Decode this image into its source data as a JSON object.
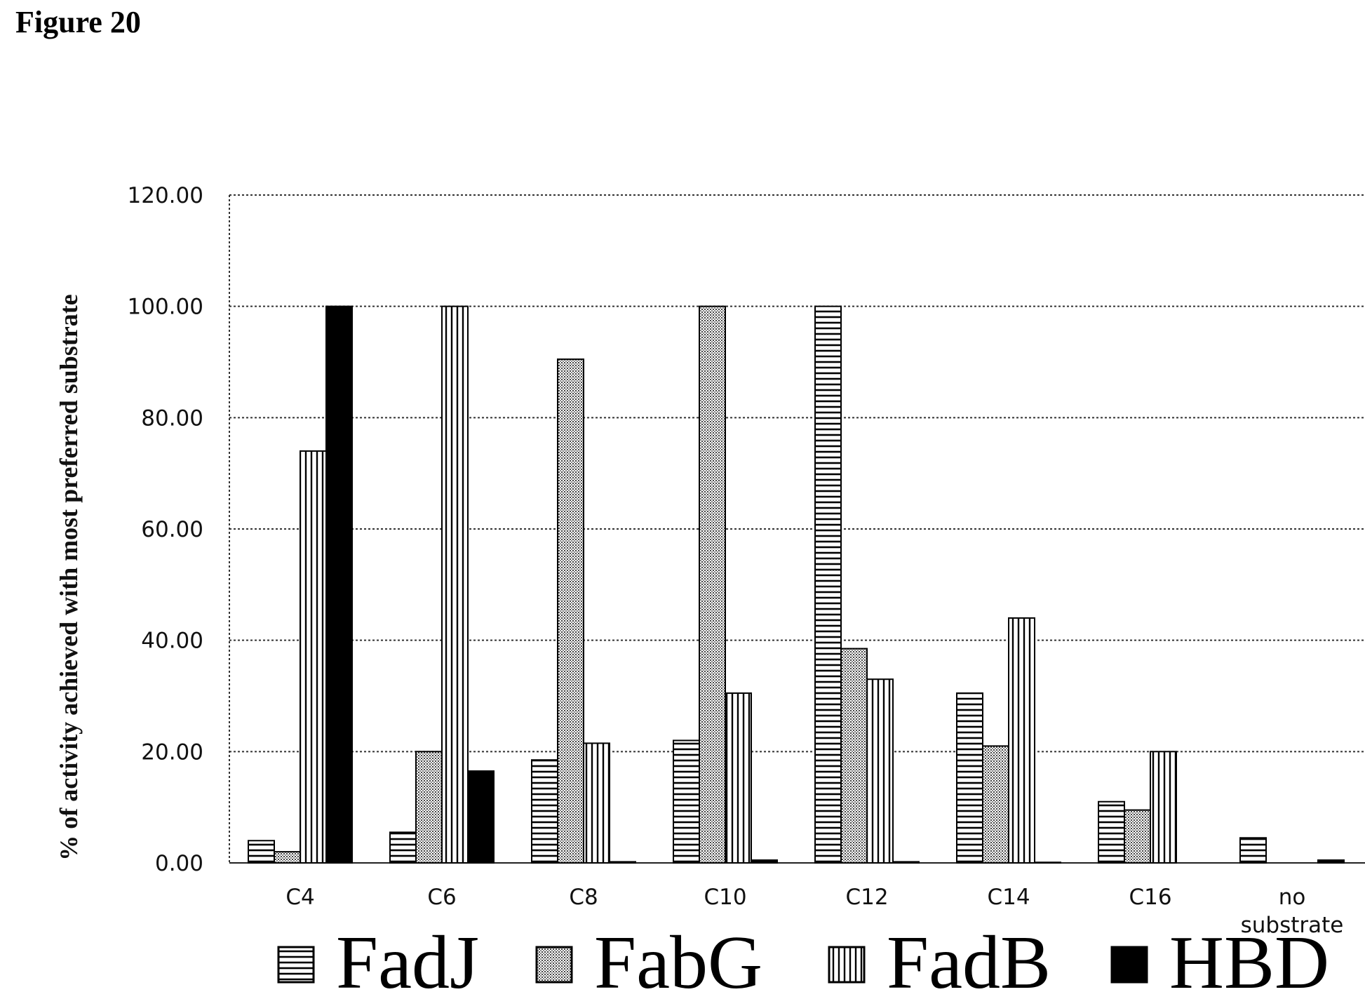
{
  "figure_label": "Figure 20",
  "chart_data": {
    "type": "bar",
    "title": "",
    "xlabel": "",
    "ylabel": "% of activity achieved with most preferred substrate",
    "ylim": [
      0,
      120
    ],
    "yticks": [
      0,
      20,
      40,
      60,
      80,
      100,
      120
    ],
    "ytick_labels": [
      "0.00",
      "20.00",
      "40.00",
      "60.00",
      "80.00",
      "100.00",
      "120.00"
    ],
    "grid": true,
    "legend_position": "bottom",
    "categories": [
      "C4",
      "C6",
      "C8",
      "C10",
      "C12",
      "C14",
      "C16",
      "no substrate"
    ],
    "series": [
      {
        "name": "FadJ",
        "pattern": "horizontal-lines",
        "values": [
          4.0,
          5.5,
          18.5,
          22.0,
          100.0,
          30.5,
          11.0,
          4.5
        ]
      },
      {
        "name": "FabG",
        "pattern": "dots",
        "values": [
          2.0,
          20.0,
          90.5,
          100.0,
          38.5,
          21.0,
          9.5,
          0.0
        ]
      },
      {
        "name": "FadB",
        "pattern": "vertical-lines",
        "values": [
          74.0,
          100.0,
          21.5,
          30.5,
          33.0,
          44.0,
          20.0,
          0.0
        ]
      },
      {
        "name": "HBD",
        "pattern": "solid-black",
        "values": [
          100.0,
          16.5,
          0.2,
          0.5,
          0.2,
          0.1,
          0.0,
          0.5
        ]
      }
    ]
  }
}
